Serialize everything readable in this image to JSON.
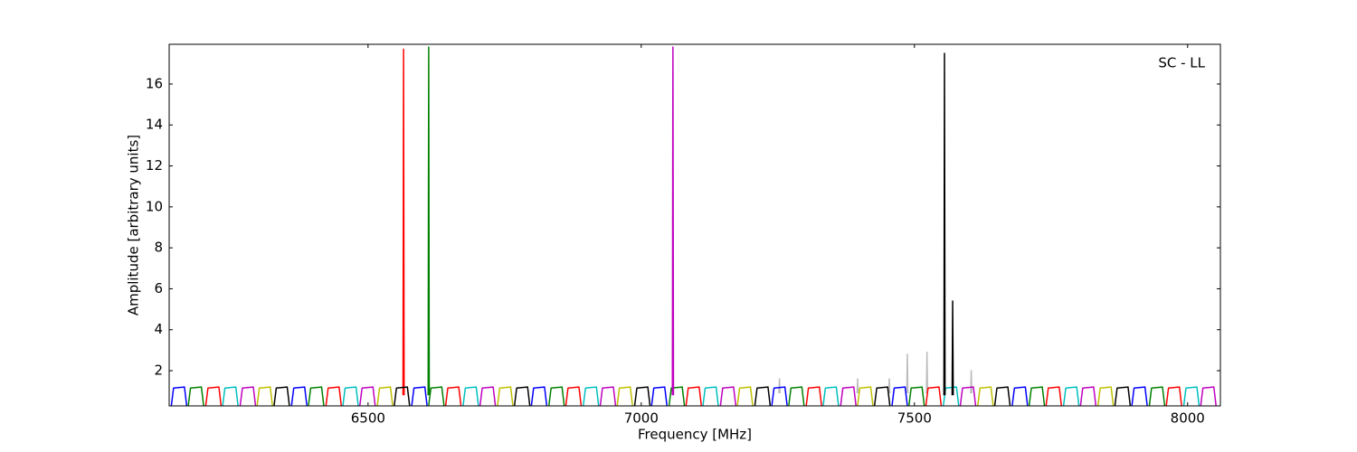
{
  "chart_data": {
    "type": "line",
    "xlabel": "Frequency [MHz]",
    "ylabel": "Amplitude [arbitrary units]",
    "annotation": "SC - LL",
    "xlim": [
      6136,
      8060
    ],
    "ylim": [
      0.28,
      17.94
    ],
    "xticks": [
      6500,
      7000,
      7500,
      8000
    ],
    "yticks": [
      2,
      4,
      6,
      8,
      10,
      12,
      14,
      16
    ],
    "grid": false,
    "series": [
      {
        "color": "#bbbbbb",
        "x": [
          7252,
          7253,
          7254,
          7255,
          7395,
          7396,
          7397,
          7398,
          7453,
          7454,
          7455,
          7456,
          7486,
          7487,
          7488,
          7489,
          7522,
          7523,
          7524,
          7525,
          7603,
          7604,
          7605
        ],
        "values": [
          0.9,
          1.6,
          0.9,
          null,
          0.9,
          1.6,
          0.9,
          null,
          0.9,
          1.6,
          0.9,
          null,
          0.9,
          2.8,
          0.9,
          null,
          0.9,
          2.9,
          0.9,
          null,
          0.9,
          2.0,
          0.9
        ]
      },
      {
        "color": "#0000ff",
        "x": [
          6140,
          6144,
          6164,
          6168,
          6169,
          6360,
          6364,
          6384,
          6388,
          6389,
          6580,
          6584,
          6604,
          6608,
          6609,
          6799,
          6803,
          6823,
          6827,
          6828,
          7019,
          7023,
          7043,
          7047,
          7048,
          7239,
          7243,
          7263,
          7267,
          7268,
          7459,
          7463,
          7483,
          7487,
          7488,
          7679,
          7683,
          7703,
          7707,
          7708,
          7898,
          7902,
          7922,
          7926
        ],
        "values": [
          0.3,
          1.15,
          1.2,
          0.3,
          null,
          0.3,
          1.15,
          1.2,
          0.3,
          null,
          0.3,
          1.15,
          1.2,
          0.3,
          null,
          0.3,
          1.15,
          1.2,
          0.3,
          null,
          0.3,
          1.15,
          1.2,
          0.3,
          null,
          0.3,
          1.15,
          1.2,
          0.3,
          null,
          0.3,
          1.15,
          1.2,
          0.3,
          null,
          0.3,
          1.15,
          1.2,
          0.3,
          null,
          0.3,
          1.15,
          1.2,
          0.3
        ]
      },
      {
        "color": "#008000",
        "x": [
          6171,
          6175,
          6195,
          6199,
          6200,
          6391,
          6395,
          6415,
          6419,
          6420,
          6611,
          6615,
          6635,
          6639,
          6640,
          6831,
          6835,
          6855,
          6859,
          6860,
          7051,
          7055,
          7075,
          7079,
          7080,
          7270,
          7274,
          7294,
          7298,
          7299,
          7490,
          7494,
          7514,
          7518,
          7519,
          7710,
          7714,
          7734,
          7738,
          7739,
          7930,
          7934,
          7954,
          7958,
          7959,
          6610,
          6611,
          6612
        ],
        "values": [
          0.3,
          1.15,
          1.2,
          0.3,
          null,
          0.3,
          1.15,
          1.2,
          0.3,
          null,
          0.3,
          1.15,
          1.2,
          0.3,
          null,
          0.3,
          1.15,
          1.2,
          0.3,
          null,
          0.3,
          1.15,
          1.2,
          0.3,
          null,
          0.3,
          1.15,
          1.2,
          0.3,
          null,
          0.3,
          1.15,
          1.2,
          0.3,
          null,
          0.3,
          1.15,
          1.2,
          0.3,
          null,
          0.3,
          1.15,
          1.2,
          0.3,
          null,
          0.8,
          17.8,
          0.8
        ]
      },
      {
        "color": "#ff0000",
        "x": [
          6203,
          6207,
          6227,
          6231,
          6232,
          6423,
          6427,
          6447,
          6451,
          6452,
          6642,
          6646,
          6666,
          6670,
          6671,
          6862,
          6866,
          6886,
          6890,
          6891,
          7082,
          7086,
          7106,
          7110,
          7111,
          7302,
          7306,
          7326,
          7330,
          7331,
          7521,
          7525,
          7545,
          7549,
          7550,
          7741,
          7745,
          7765,
          7769,
          7770,
          7961,
          7965,
          7985,
          7989,
          7990,
          6564,
          6565,
          6566
        ],
        "values": [
          0.3,
          1.15,
          1.2,
          0.3,
          null,
          0.3,
          1.15,
          1.2,
          0.3,
          null,
          0.3,
          1.15,
          1.2,
          0.3,
          null,
          0.3,
          1.15,
          1.2,
          0.3,
          null,
          0.3,
          1.15,
          1.2,
          0.3,
          null,
          0.3,
          1.15,
          1.2,
          0.3,
          null,
          0.3,
          1.15,
          1.2,
          0.3,
          null,
          0.3,
          1.15,
          1.2,
          0.3,
          null,
          0.3,
          1.15,
          1.2,
          0.3,
          null,
          0.8,
          17.7,
          0.8
        ]
      },
      {
        "color": "#00bfbf",
        "x": [
          6234,
          6238,
          6258,
          6262,
          6263,
          6454,
          6458,
          6478,
          6482,
          6483,
          6674,
          6678,
          6698,
          6702,
          6703,
          6894,
          6898,
          6918,
          6922,
          6923,
          7113,
          7117,
          7137,
          7141,
          7142,
          7333,
          7337,
          7357,
          7361,
          7362,
          7553,
          7557,
          7577,
          7581,
          7582,
          7773,
          7777,
          7797,
          7801,
          7802,
          7993,
          7997,
          8017,
          8021
        ],
        "values": [
          0.3,
          1.15,
          1.2,
          0.3,
          null,
          0.3,
          1.15,
          1.2,
          0.3,
          null,
          0.3,
          1.15,
          1.2,
          0.3,
          null,
          0.3,
          1.15,
          1.2,
          0.3,
          null,
          0.3,
          1.15,
          1.2,
          0.3,
          null,
          0.3,
          1.15,
          1.2,
          0.3,
          null,
          0.3,
          1.15,
          1.2,
          0.3,
          null,
          0.3,
          1.15,
          1.2,
          0.3,
          null,
          0.3,
          1.15,
          1.2,
          0.3
        ]
      },
      {
        "color": "#bf00bf",
        "x": [
          6266,
          6270,
          6290,
          6294,
          6295,
          6485,
          6489,
          6509,
          6513,
          6514,
          6705,
          6709,
          6729,
          6733,
          6734,
          6925,
          6929,
          6949,
          6953,
          6954,
          7145,
          7149,
          7169,
          7173,
          7174,
          7365,
          7369,
          7389,
          7393,
          7394,
          7584,
          7588,
          7608,
          7612,
          7613,
          7804,
          7808,
          7828,
          7832,
          7833,
          8024,
          8028,
          8048,
          8052,
          8053,
          7057,
          7058,
          7059
        ],
        "values": [
          0.3,
          1.15,
          1.2,
          0.3,
          null,
          0.3,
          1.15,
          1.2,
          0.3,
          null,
          0.3,
          1.15,
          1.2,
          0.3,
          null,
          0.3,
          1.15,
          1.2,
          0.3,
          null,
          0.3,
          1.15,
          1.2,
          0.3,
          null,
          0.3,
          1.15,
          1.2,
          0.3,
          null,
          0.3,
          1.15,
          1.2,
          0.3,
          null,
          0.3,
          1.15,
          1.2,
          0.3,
          null,
          0.3,
          1.15,
          1.2,
          0.3,
          null,
          0.8,
          17.8,
          0.8
        ]
      },
      {
        "color": "#bfbf00",
        "x": [
          6297,
          6301,
          6321,
          6325,
          6326,
          6517,
          6521,
          6541,
          6545,
          6546,
          6737,
          6741,
          6761,
          6765,
          6766,
          6956,
          6960,
          6980,
          6984,
          6985,
          7176,
          7180,
          7200,
          7204,
          7205,
          7396,
          7400,
          7420,
          7424,
          7425,
          7616,
          7620,
          7640,
          7644,
          7645,
          7836,
          7840,
          7860,
          7864
        ],
        "values": [
          0.3,
          1.15,
          1.2,
          0.3,
          null,
          0.3,
          1.15,
          1.2,
          0.3,
          null,
          0.3,
          1.15,
          1.2,
          0.3,
          null,
          0.3,
          1.15,
          1.2,
          0.3,
          null,
          0.3,
          1.15,
          1.2,
          0.3,
          null,
          0.3,
          1.15,
          1.2,
          0.3,
          null,
          0.3,
          1.15,
          1.2,
          0.3,
          null,
          0.3,
          1.15,
          1.2,
          0.3
        ]
      },
      {
        "color": "#000000",
        "x": [
          6328,
          6332,
          6352,
          6356,
          6357,
          6548,
          6552,
          6572,
          6576,
          6577,
          6768,
          6772,
          6792,
          6796,
          6797,
          6988,
          6992,
          7012,
          7016,
          7017,
          7208,
          7212,
          7232,
          7236,
          7237,
          7427,
          7431,
          7451,
          7455,
          7456,
          7647,
          7651,
          7671,
          7675,
          7676,
          7867,
          7871,
          7891,
          7895,
          7896,
          7554,
          7555,
          7556,
          7557,
          7569,
          7570,
          7571
        ],
        "values": [
          0.3,
          1.15,
          1.2,
          0.3,
          null,
          0.3,
          1.15,
          1.2,
          0.3,
          null,
          0.3,
          1.15,
          1.2,
          0.3,
          null,
          0.3,
          1.15,
          1.2,
          0.3,
          null,
          0.3,
          1.15,
          1.2,
          0.3,
          null,
          0.3,
          1.15,
          1.2,
          0.3,
          null,
          0.3,
          1.15,
          1.2,
          0.3,
          null,
          0.3,
          1.15,
          1.2,
          0.3,
          null,
          0.8,
          17.5,
          0.8,
          null,
          0.8,
          5.4,
          0.8
        ]
      }
    ]
  }
}
